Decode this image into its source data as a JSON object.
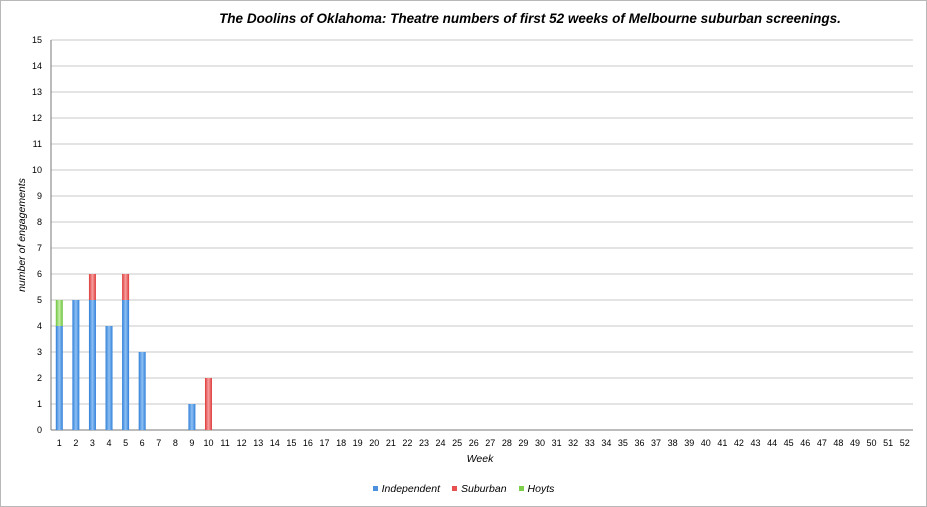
{
  "chart_data": {
    "type": "bar",
    "stacked": true,
    "title": "The Doolins of Oklahoma: Theatre numbers of first 52 weeks of Melbourne suburban screenings.",
    "xlabel": "Week",
    "ylabel": "number of engagements",
    "ylim": [
      0,
      15
    ],
    "yticks": [
      "0",
      "1",
      "2",
      "3",
      "4",
      "5",
      "6",
      "7",
      "8",
      "9",
      "10",
      "11",
      "12",
      "13",
      "14",
      "15"
    ],
    "grid": true,
    "legend_position": "bottom",
    "categories": [
      "1",
      "2",
      "3",
      "4",
      "5",
      "6",
      "7",
      "8",
      "9",
      "10",
      "11",
      "12",
      "13",
      "14",
      "15",
      "16",
      "17",
      "18",
      "19",
      "20",
      "21",
      "22",
      "23",
      "24",
      "25",
      "26",
      "27",
      "28",
      "29",
      "30",
      "31",
      "32",
      "33",
      "34",
      "35",
      "36",
      "37",
      "38",
      "39",
      "40",
      "41",
      "42",
      "43",
      "44",
      "45",
      "46",
      "47",
      "48",
      "49",
      "50",
      "51",
      "52"
    ],
    "series": [
      {
        "name": "Independent",
        "color": "#4a90dc",
        "values": [
          4,
          5,
          5,
          4,
          5,
          3,
          0,
          0,
          1,
          0,
          0,
          0,
          0,
          0,
          0,
          0,
          0,
          0,
          0,
          0,
          0,
          0,
          0,
          0,
          0,
          0,
          0,
          0,
          0,
          0,
          0,
          0,
          0,
          0,
          0,
          0,
          0,
          0,
          0,
          0,
          0,
          0,
          0,
          0,
          0,
          0,
          0,
          0,
          0,
          0,
          0,
          0
        ]
      },
      {
        "name": "Suburban",
        "color": "#e85050",
        "values": [
          0,
          0,
          1,
          0,
          1,
          0,
          0,
          0,
          0,
          2,
          0,
          0,
          0,
          0,
          0,
          0,
          0,
          0,
          0,
          0,
          0,
          0,
          0,
          0,
          0,
          0,
          0,
          0,
          0,
          0,
          0,
          0,
          0,
          0,
          0,
          0,
          0,
          0,
          0,
          0,
          0,
          0,
          0,
          0,
          0,
          0,
          0,
          0,
          0,
          0,
          0,
          0
        ]
      },
      {
        "name": "Hoyts",
        "color": "#7ccf4a",
        "values": [
          1,
          0,
          0,
          0,
          0,
          0,
          0,
          0,
          0,
          0,
          0,
          0,
          0,
          0,
          0,
          0,
          0,
          0,
          0,
          0,
          0,
          0,
          0,
          0,
          0,
          0,
          0,
          0,
          0,
          0,
          0,
          0,
          0,
          0,
          0,
          0,
          0,
          0,
          0,
          0,
          0,
          0,
          0,
          0,
          0,
          0,
          0,
          0,
          0,
          0,
          0,
          0
        ]
      }
    ]
  }
}
